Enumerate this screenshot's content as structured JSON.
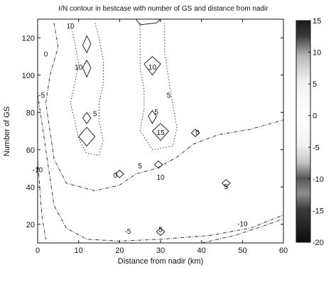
{
  "chart_data": {
    "type": "contour",
    "title": "I/N contour in bestcase with number of GS and distance from nadir",
    "xlabel": "Distance from nadir (km)",
    "ylabel": "Number of GS",
    "xlim": [
      0,
      60
    ],
    "ylim": [
      10,
      130
    ],
    "xticks": [
      0,
      10,
      20,
      30,
      40,
      50,
      60
    ],
    "yticks": [
      20,
      40,
      60,
      80,
      100,
      120
    ],
    "grid": false,
    "colorbar": {
      "range": [
        -20,
        15
      ],
      "ticks": [
        15,
        10,
        5,
        0,
        -5,
        -10,
        -15,
        -20
      ],
      "colormap": "gray, dark at both ends, light around 0"
    },
    "contour_labels": [
      {
        "text": "10",
        "x": 8,
        "y": 125
      },
      {
        "text": "0",
        "x": 2,
        "y": 110
      },
      {
        "text": "10",
        "x": 10,
        "y": 103
      },
      {
        "text": "-5",
        "x": 1,
        "y": 88
      },
      {
        "text": "5",
        "x": 14,
        "y": 78
      },
      {
        "text": "-10",
        "x": 0,
        "y": 48
      },
      {
        "text": "0",
        "x": 19,
        "y": 45
      },
      {
        "text": "10",
        "x": 28,
        "y": 103
      },
      {
        "text": "5",
        "x": 32,
        "y": 88
      },
      {
        "text": "5",
        "x": 29,
        "y": 79
      },
      {
        "text": "15",
        "x": 30,
        "y": 68
      },
      {
        "text": "0",
        "x": 39,
        "y": 68
      },
      {
        "text": "5",
        "x": 25,
        "y": 50
      },
      {
        "text": "10",
        "x": 30,
        "y": 44
      },
      {
        "text": "5",
        "x": 46,
        "y": 39
      },
      {
        "text": "-5",
        "x": 22,
        "y": 15
      },
      {
        "text": "5",
        "x": 30,
        "y": 16
      },
      {
        "text": "-10",
        "x": 50,
        "y": 19
      }
    ],
    "contour_lines": [
      {
        "level": 5,
        "style": "dotted",
        "points": [
          [
            8,
            128
          ],
          [
            9,
            118
          ],
          [
            10,
            106
          ],
          [
            9,
            95
          ],
          [
            8,
            85
          ],
          [
            9,
            76
          ],
          [
            10,
            66
          ],
          [
            12,
            58
          ],
          [
            15,
            57
          ],
          [
            16,
            65
          ],
          [
            15,
            75
          ],
          [
            15,
            85
          ],
          [
            16,
            95
          ],
          [
            16,
            108
          ],
          [
            15,
            120
          ],
          [
            14,
            128
          ]
        ]
      },
      {
        "level": 5,
        "style": "dotted",
        "points": [
          [
            25,
            128
          ],
          [
            25,
            116
          ],
          [
            25,
            104
          ],
          [
            26,
            92
          ],
          [
            26,
            82
          ],
          [
            25,
            70
          ],
          [
            28,
            60
          ],
          [
            33,
            62
          ],
          [
            34,
            72
          ],
          [
            33,
            84
          ],
          [
            32,
            98
          ],
          [
            31,
            112
          ],
          [
            31,
            128
          ]
        ]
      },
      {
        "level": 0,
        "style": "dashdot",
        "points": [
          [
            4,
            128
          ],
          [
            5,
            115
          ],
          [
            3,
            100
          ],
          [
            2,
            85
          ],
          [
            3,
            70
          ],
          [
            4,
            55
          ],
          [
            7,
            42
          ],
          [
            14,
            38
          ],
          [
            20,
            41
          ],
          [
            24,
            47
          ],
          [
            29,
            50
          ],
          [
            34,
            56
          ],
          [
            38,
            63
          ],
          [
            44,
            68
          ],
          [
            52,
            71
          ],
          [
            60,
            76
          ]
        ]
      },
      {
        "level": -5,
        "style": "dashdot",
        "points": [
          [
            0,
            90
          ],
          [
            1,
            75
          ],
          [
            2,
            60
          ],
          [
            3,
            45
          ],
          [
            4,
            30
          ],
          [
            7,
            18
          ],
          [
            12,
            12
          ],
          [
            20,
            11
          ],
          [
            30,
            12
          ],
          [
            42,
            14
          ],
          [
            52,
            18
          ],
          [
            60,
            25
          ]
        ]
      },
      {
        "level": -10,
        "style": "dashdot",
        "points": [
          [
            0,
            55
          ],
          [
            0.5,
            40
          ],
          [
            1,
            25
          ],
          [
            2,
            12
          ]
        ]
      },
      {
        "level": -10,
        "style": "dashdot",
        "points": [
          [
            40,
            10
          ],
          [
            48,
            14
          ],
          [
            55,
            19
          ],
          [
            60,
            23
          ]
        ]
      },
      {
        "level": 10,
        "style": "solid",
        "points": [
          [
            11,
            116
          ],
          [
            12,
            121
          ],
          [
            13,
            117
          ],
          [
            12,
            112
          ],
          [
            11,
            116
          ]
        ]
      },
      {
        "level": 10,
        "style": "solid",
        "points": [
          [
            11,
            104
          ],
          [
            12,
            108
          ],
          [
            13,
            104
          ],
          [
            12,
            99
          ],
          [
            11,
            104
          ]
        ]
      },
      {
        "level": 10,
        "style": "solid",
        "points": [
          [
            11,
            77
          ],
          [
            12,
            80
          ],
          [
            13,
            77
          ],
          [
            12,
            74
          ],
          [
            11,
            77
          ]
        ]
      },
      {
        "level": 10,
        "style": "solid",
        "points": [
          [
            10,
            67
          ],
          [
            12,
            72
          ],
          [
            14,
            67
          ],
          [
            12,
            62
          ],
          [
            10,
            67
          ]
        ]
      },
      {
        "level": 10,
        "style": "solid",
        "points": [
          [
            26,
            106
          ],
          [
            28,
            110
          ],
          [
            30,
            106
          ],
          [
            28,
            100
          ],
          [
            26,
            106
          ]
        ]
      },
      {
        "level": 10,
        "style": "solid",
        "points": [
          [
            27,
            78
          ],
          [
            28,
            81
          ],
          [
            29,
            78
          ],
          [
            28,
            74
          ],
          [
            27,
            78
          ]
        ]
      },
      {
        "level": 10,
        "style": "solid",
        "points": [
          [
            28,
            70
          ],
          [
            30,
            74
          ],
          [
            32,
            70
          ],
          [
            30,
            65
          ],
          [
            28,
            70
          ]
        ]
      },
      {
        "level": 10,
        "style": "solid",
        "points": [
          [
            19,
            47
          ],
          [
            20,
            49
          ],
          [
            21,
            47
          ],
          [
            20,
            45
          ],
          [
            19,
            47
          ]
        ]
      },
      {
        "level": 10,
        "style": "solid",
        "points": [
          [
            28.5,
            52
          ],
          [
            29.5,
            54
          ],
          [
            30.5,
            52
          ],
          [
            29.5,
            50
          ],
          [
            28.5,
            52
          ]
        ]
      },
      {
        "level": 10,
        "style": "solid",
        "points": [
          [
            37.5,
            69
          ],
          [
            38.5,
            71
          ],
          [
            39.5,
            69
          ],
          [
            38.5,
            67
          ],
          [
            37.5,
            69
          ]
        ]
      },
      {
        "level": 10,
        "style": "solid",
        "points": [
          [
            45,
            42
          ],
          [
            46,
            44
          ],
          [
            47,
            42
          ],
          [
            46,
            40
          ],
          [
            45,
            42
          ]
        ]
      },
      {
        "level": 10,
        "style": "solid",
        "points": [
          [
            29,
            16
          ],
          [
            30,
            18
          ],
          [
            31,
            16
          ],
          [
            30,
            14
          ],
          [
            29,
            16
          ]
        ]
      },
      {
        "level": 10,
        "style": "solid",
        "points": [
          [
            24,
            130
          ],
          [
            25,
            127
          ],
          [
            29,
            128
          ],
          [
            30,
            130
          ]
        ]
      }
    ]
  }
}
